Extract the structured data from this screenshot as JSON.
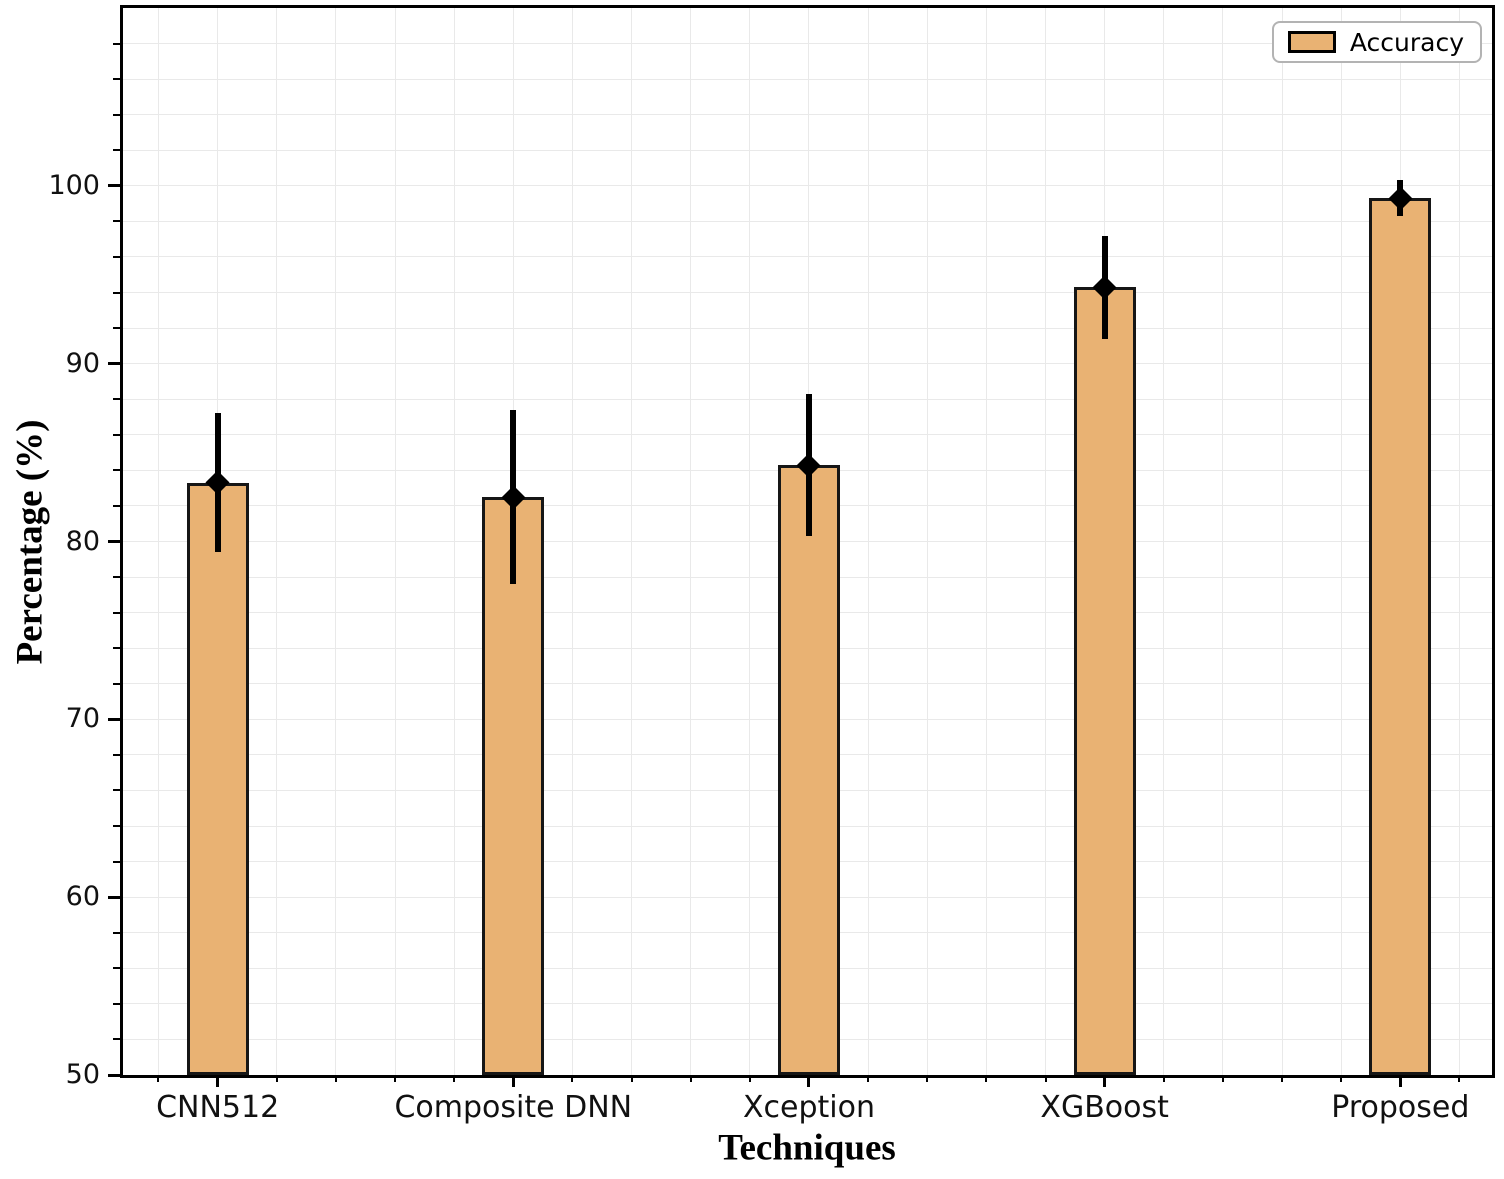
{
  "chart_data": {
    "type": "bar",
    "title": "",
    "xlabel": "Techniques",
    "ylabel": "Percentage (%)",
    "categories": [
      "CNN512",
      "Composite DNN",
      "Xception",
      "XGBoost",
      "Proposed"
    ],
    "series": [
      {
        "name": "Accuracy",
        "values": [
          83.3,
          82.5,
          84.3,
          94.3,
          99.3
        ],
        "errors": [
          3.9,
          4.9,
          4.0,
          2.9,
          1.0
        ]
      }
    ],
    "ylim": [
      50,
      110
    ],
    "yticks": [
      50,
      60,
      70,
      80,
      90,
      100
    ],
    "y_minor_step": 2,
    "xlim": [
      -0.32,
      4.31
    ],
    "x_minor_step": 0.2,
    "grid": true,
    "legend": {
      "position": "upper right",
      "entries": [
        "Accuracy"
      ]
    },
    "colors": {
      "bar_fill": "#e9b273",
      "bar_edge": "#161616",
      "error_bar": "#000000",
      "grid": "#e9e9e9",
      "spine": "#000000"
    },
    "marker": "diamond"
  }
}
